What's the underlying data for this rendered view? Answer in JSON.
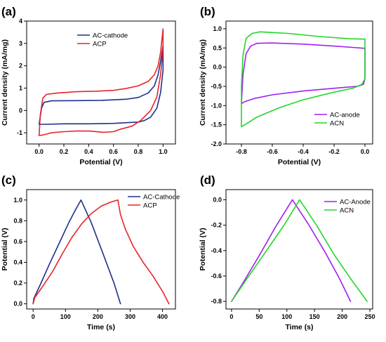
{
  "chart_data": [
    {
      "panel_label": "(a)",
      "type": "line",
      "xlabel": "Potential (V)",
      "ylabel": "Current density (mA/mg)",
      "xlim": [
        -0.1,
        1.1
      ],
      "ylim": [
        -1.5,
        4.0
      ],
      "xticks": [
        0.0,
        0.2,
        0.4,
        0.6,
        0.8,
        1.0
      ],
      "xtick_labels": [
        "0.0",
        "0.2",
        "0.4",
        "0.6",
        "0.8",
        "1.0"
      ],
      "yticks": [
        -1,
        0,
        1,
        2,
        3,
        4
      ],
      "ytick_labels": [
        "-1",
        "0",
        "1",
        "2",
        "3",
        "4"
      ],
      "legend_position": "top-center",
      "series": [
        {
          "name": "AC-cathode",
          "color": "#1f2f8c",
          "closed": true,
          "points": [
            [
              0.0,
              -0.62
            ],
            [
              0.02,
              0.1
            ],
            [
              0.04,
              0.36
            ],
            [
              0.1,
              0.43
            ],
            [
              0.3,
              0.44
            ],
            [
              0.5,
              0.45
            ],
            [
              0.7,
              0.5
            ],
            [
              0.8,
              0.58
            ],
            [
              0.88,
              0.78
            ],
            [
              0.93,
              1.1
            ],
            [
              0.96,
              1.6
            ],
            [
              0.98,
              2.2
            ],
            [
              1.0,
              2.9
            ],
            [
              1.0,
              1.8
            ],
            [
              0.98,
              0.8
            ],
            [
              0.95,
              0.1
            ],
            [
              0.9,
              -0.3
            ],
            [
              0.85,
              -0.45
            ],
            [
              0.8,
              -0.52
            ],
            [
              0.6,
              -0.58
            ],
            [
              0.4,
              -0.6
            ],
            [
              0.2,
              -0.6
            ],
            [
              0.05,
              -0.62
            ],
            [
              0.0,
              -0.62
            ]
          ]
        },
        {
          "name": "ACP",
          "color": "#e8232a",
          "closed": true,
          "points": [
            [
              0.0,
              -1.12
            ],
            [
              0.01,
              -0.2
            ],
            [
              0.03,
              0.55
            ],
            [
              0.06,
              0.72
            ],
            [
              0.15,
              0.78
            ],
            [
              0.3,
              0.84
            ],
            [
              0.45,
              0.86
            ],
            [
              0.6,
              0.9
            ],
            [
              0.7,
              0.98
            ],
            [
              0.8,
              1.1
            ],
            [
              0.88,
              1.3
            ],
            [
              0.93,
              1.6
            ],
            [
              0.96,
              2.0
            ],
            [
              0.98,
              2.6
            ],
            [
              1.0,
              3.65
            ],
            [
              1.0,
              2.8
            ],
            [
              0.98,
              1.6
            ],
            [
              0.95,
              0.6
            ],
            [
              0.9,
              0.0
            ],
            [
              0.82,
              -0.45
            ],
            [
              0.75,
              -0.7
            ],
            [
              0.65,
              -0.85
            ],
            [
              0.6,
              -0.95
            ],
            [
              0.52,
              -0.98
            ],
            [
              0.4,
              -0.92
            ],
            [
              0.3,
              -0.92
            ],
            [
              0.2,
              -0.95
            ],
            [
              0.1,
              -1.0
            ],
            [
              0.03,
              -1.1
            ],
            [
              0.0,
              -1.12
            ]
          ]
        }
      ]
    },
    {
      "panel_label": "(b)",
      "type": "line",
      "xlabel": "Potential (V)",
      "ylabel": "Current density (mA/mg)",
      "xlim": [
        -0.9,
        0.05
      ],
      "ylim": [
        -2.0,
        1.2
      ],
      "xticks": [
        -0.8,
        -0.6,
        -0.4,
        -0.2,
        0.0
      ],
      "xtick_labels": [
        "-0.8",
        "-0.6",
        "-0.4",
        "-0.2",
        "0.0"
      ],
      "yticks": [
        -2.0,
        -1.5,
        -1.0,
        -0.5,
        0.0,
        0.5,
        1.0
      ],
      "ytick_labels": [
        "-2.0",
        "-1.5",
        "-1.0",
        "-0.5",
        "0.0",
        "0.5",
        "1.0"
      ],
      "legend_position": "bottom-right",
      "series": [
        {
          "name": "AC-anode",
          "color": "#a020f0",
          "closed": true,
          "points": [
            [
              -0.8,
              -0.95
            ],
            [
              -0.79,
              -0.2
            ],
            [
              -0.77,
              0.35
            ],
            [
              -0.74,
              0.55
            ],
            [
              -0.7,
              0.62
            ],
            [
              -0.6,
              0.63
            ],
            [
              -0.4,
              0.6
            ],
            [
              -0.2,
              0.55
            ],
            [
              0.0,
              0.49
            ],
            [
              0.0,
              -0.3
            ],
            [
              -0.01,
              -0.45
            ],
            [
              -0.05,
              -0.5
            ],
            [
              -0.2,
              -0.55
            ],
            [
              -0.4,
              -0.62
            ],
            [
              -0.6,
              -0.72
            ],
            [
              -0.72,
              -0.82
            ],
            [
              -0.78,
              -0.9
            ],
            [
              -0.8,
              -0.95
            ]
          ]
        },
        {
          "name": "ACN",
          "color": "#22d62a",
          "closed": true,
          "points": [
            [
              -0.8,
              -1.55
            ],
            [
              -0.8,
              -0.5
            ],
            [
              -0.79,
              0.3
            ],
            [
              -0.77,
              0.75
            ],
            [
              -0.73,
              0.88
            ],
            [
              -0.68,
              0.92
            ],
            [
              -0.5,
              0.88
            ],
            [
              -0.3,
              0.8
            ],
            [
              -0.1,
              0.74
            ],
            [
              0.0,
              0.73
            ],
            [
              0.0,
              -0.3
            ],
            [
              -0.02,
              -0.45
            ],
            [
              -0.08,
              -0.55
            ],
            [
              -0.2,
              -0.65
            ],
            [
              -0.4,
              -0.85
            ],
            [
              -0.55,
              -1.05
            ],
            [
              -0.7,
              -1.3
            ],
            [
              -0.77,
              -1.48
            ],
            [
              -0.8,
              -1.55
            ]
          ]
        }
      ]
    },
    {
      "panel_label": "(c)",
      "type": "line",
      "xlabel": "Time (s)",
      "ylabel": "Potential (V)",
      "xlim": [
        -20,
        440
      ],
      "ylim": [
        -0.05,
        1.1
      ],
      "xticks": [
        0,
        100,
        200,
        300,
        400
      ],
      "xtick_labels": [
        "0",
        "100",
        "200",
        "300",
        "400"
      ],
      "yticks": [
        0.0,
        0.2,
        0.4,
        0.6,
        0.8,
        1.0
      ],
      "ytick_labels": [
        "0.0",
        "0.2",
        "0.4",
        "0.6",
        "0.8",
        "1.0"
      ],
      "legend_position": "top-right",
      "series": [
        {
          "name": "AC-Cathode",
          "color": "#1f2f8c",
          "closed": false,
          "points": [
            [
              0,
              0.0
            ],
            [
              2,
              0.05
            ],
            [
              20,
              0.17
            ],
            [
              50,
              0.38
            ],
            [
              80,
              0.58
            ],
            [
              110,
              0.78
            ],
            [
              130,
              0.9
            ],
            [
              148,
              1.0
            ],
            [
              180,
              0.78
            ],
            [
              220,
              0.45
            ],
            [
              250,
              0.2
            ],
            [
              270,
              0.0
            ]
          ]
        },
        {
          "name": "ACP",
          "color": "#e8232a",
          "closed": false,
          "points": [
            [
              0,
              0.0
            ],
            [
              5,
              0.06
            ],
            [
              30,
              0.17
            ],
            [
              60,
              0.31
            ],
            [
              90,
              0.48
            ],
            [
              120,
              0.64
            ],
            [
              150,
              0.77
            ],
            [
              180,
              0.87
            ],
            [
              210,
              0.94
            ],
            [
              240,
              0.98
            ],
            [
              262,
              1.0
            ],
            [
              270,
              0.86
            ],
            [
              285,
              0.72
            ],
            [
              310,
              0.55
            ],
            [
              340,
              0.4
            ],
            [
              370,
              0.27
            ],
            [
              400,
              0.12
            ],
            [
              420,
              0.0
            ]
          ]
        }
      ]
    },
    {
      "panel_label": "(d)",
      "type": "line",
      "xlabel": "Time (s)",
      "ylabel": "Potential (V)",
      "xlim": [
        -10,
        255
      ],
      "ylim": [
        -0.86,
        0.08
      ],
      "xticks": [
        0,
        50,
        100,
        150,
        200,
        250
      ],
      "xtick_labels": [
        "0",
        "50",
        "100",
        "150",
        "200",
        "250"
      ],
      "yticks": [
        -0.8,
        -0.6,
        -0.4,
        -0.2,
        0.0
      ],
      "ytick_labels": [
        "-0.8",
        "-0.6",
        "-0.4",
        "-0.2",
        "0.0"
      ],
      "legend_position": "top-right",
      "series": [
        {
          "name": "AC-Anode",
          "color": "#a020f0",
          "closed": false,
          "points": [
            [
              0,
              -0.8
            ],
            [
              20,
              -0.66
            ],
            [
              50,
              -0.44
            ],
            [
              80,
              -0.21
            ],
            [
              110,
              0.0
            ],
            [
              140,
              -0.2
            ],
            [
              170,
              -0.42
            ],
            [
              195,
              -0.62
            ],
            [
              215,
              -0.8
            ]
          ]
        },
        {
          "name": "ACN",
          "color": "#22d62a",
          "closed": false,
          "points": [
            [
              0,
              -0.8
            ],
            [
              25,
              -0.64
            ],
            [
              60,
              -0.42
            ],
            [
              95,
              -0.2
            ],
            [
              123,
              0.0
            ],
            [
              155,
              -0.21
            ],
            [
              185,
              -0.43
            ],
            [
              215,
              -0.62
            ],
            [
              245,
              -0.8
            ]
          ]
        }
      ]
    }
  ]
}
